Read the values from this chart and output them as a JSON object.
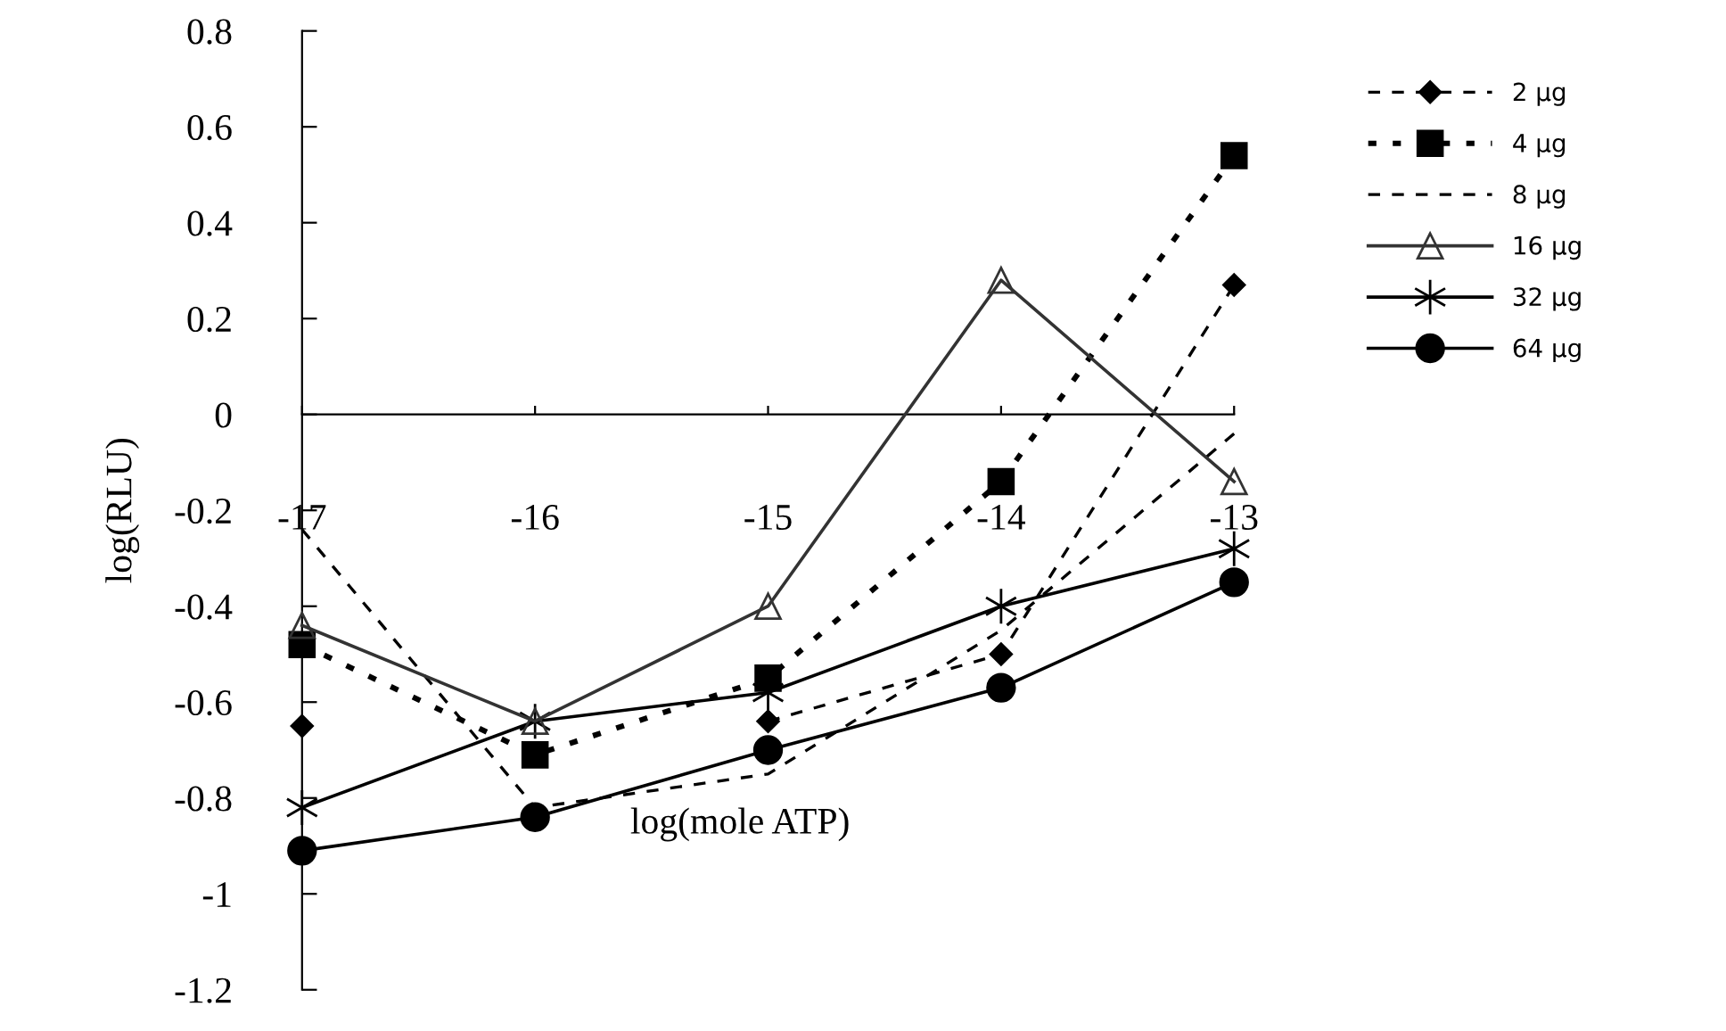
{
  "chart_data": {
    "type": "line",
    "xlabel": "log(mole ATP)",
    "ylabel": "log(RLU)",
    "x": [
      -17,
      -16,
      -15,
      -14,
      -13
    ],
    "xlim": [
      -17,
      -13
    ],
    "xticks": [
      -17,
      -16,
      -15,
      -14,
      -13
    ],
    "ylim": [
      -1.2,
      0.8
    ],
    "yticks": [
      -1.2,
      -1,
      -0.8,
      -0.6,
      -0.4,
      -0.2,
      0,
      0.2,
      0.4,
      0.6,
      0.8
    ],
    "grid": false,
    "legend": "right",
    "series": [
      {
        "name": "2 µg",
        "color": "#000000",
        "marker": "diamond",
        "line_style": "dashed",
        "values": [
          -0.65,
          null,
          -0.64,
          -0.5,
          0.27
        ]
      },
      {
        "name": "4 µg",
        "color": "#000000",
        "marker": "square",
        "line_style": "dotted",
        "values": [
          -0.48,
          -0.71,
          -0.55,
          -0.14,
          0.54
        ]
      },
      {
        "name": "8 µg",
        "color": "#000000",
        "marker": "none",
        "line_style": "dashed",
        "values": [
          -0.24,
          -0.82,
          -0.75,
          -0.45,
          -0.04
        ]
      },
      {
        "name": "16 µg",
        "color": "#333333",
        "marker": "triangle",
        "line_style": "solid",
        "values": [
          -0.44,
          -0.64,
          -0.4,
          0.28,
          -0.14
        ]
      },
      {
        "name": "32 µg",
        "color": "#000000",
        "marker": "cross",
        "line_style": "solid",
        "values": [
          -0.82,
          -0.64,
          -0.58,
          -0.4,
          -0.28
        ]
      },
      {
        "name": "64 µg",
        "color": "#000000",
        "marker": "circle",
        "line_style": "solid",
        "values": [
          -0.91,
          -0.84,
          -0.7,
          -0.57,
          -0.35
        ]
      }
    ]
  }
}
